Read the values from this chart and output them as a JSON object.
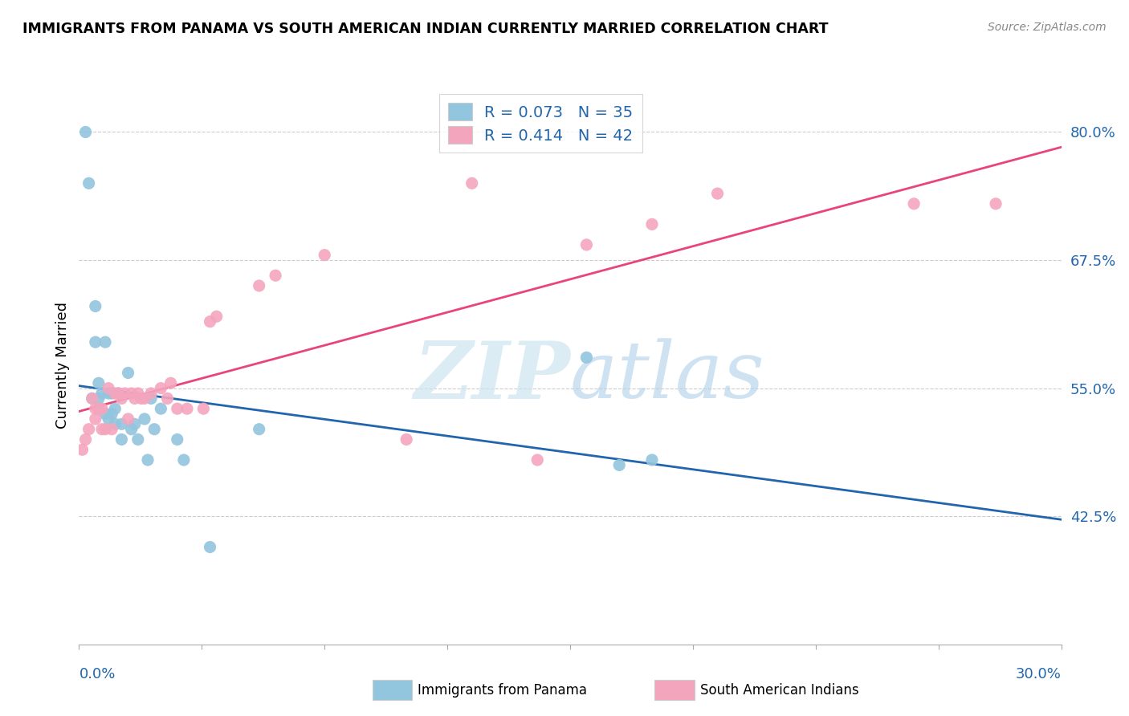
{
  "title": "IMMIGRANTS FROM PANAMA VS SOUTH AMERICAN INDIAN CURRENTLY MARRIED CORRELATION CHART",
  "source": "Source: ZipAtlas.com",
  "ylabel": "Currently Married",
  "ylabel_ticks": [
    "42.5%",
    "55.0%",
    "67.5%",
    "80.0%"
  ],
  "ylabel_tick_vals": [
    0.425,
    0.55,
    0.675,
    0.8
  ],
  "xmin": 0.0,
  "xmax": 0.3,
  "ymin": 0.3,
  "ymax": 0.845,
  "legend1_R": "0.073",
  "legend1_N": "35",
  "legend2_R": "0.414",
  "legend2_N": "42",
  "legend1_label": "Immigrants from Panama",
  "legend2_label": "South American Indians",
  "blue_color": "#92c5de",
  "pink_color": "#f4a5be",
  "blue_line_color": "#2166ac",
  "pink_line_color": "#e8457a",
  "watermark_color": "#cce4f0",
  "blue_x": [
    0.002,
    0.003,
    0.004,
    0.005,
    0.005,
    0.006,
    0.006,
    0.007,
    0.008,
    0.008,
    0.009,
    0.009,
    0.01,
    0.01,
    0.011,
    0.011,
    0.012,
    0.013,
    0.013,
    0.015,
    0.016,
    0.017,
    0.018,
    0.02,
    0.021,
    0.022,
    0.023,
    0.025,
    0.03,
    0.032,
    0.04,
    0.055,
    0.155,
    0.165,
    0.175
  ],
  "blue_y": [
    0.8,
    0.75,
    0.54,
    0.595,
    0.63,
    0.54,
    0.555,
    0.545,
    0.595,
    0.525,
    0.545,
    0.52,
    0.545,
    0.525,
    0.53,
    0.515,
    0.545,
    0.515,
    0.5,
    0.565,
    0.51,
    0.515,
    0.5,
    0.52,
    0.48,
    0.54,
    0.51,
    0.53,
    0.5,
    0.48,
    0.395,
    0.51,
    0.58,
    0.475,
    0.48
  ],
  "pink_x": [
    0.001,
    0.002,
    0.003,
    0.004,
    0.005,
    0.005,
    0.006,
    0.007,
    0.007,
    0.008,
    0.009,
    0.01,
    0.011,
    0.012,
    0.013,
    0.014,
    0.015,
    0.016,
    0.017,
    0.018,
    0.019,
    0.02,
    0.022,
    0.025,
    0.027,
    0.028,
    0.03,
    0.033,
    0.038,
    0.04,
    0.042,
    0.055,
    0.06,
    0.075,
    0.1,
    0.12,
    0.14,
    0.155,
    0.175,
    0.195,
    0.255,
    0.28
  ],
  "pink_y": [
    0.49,
    0.5,
    0.51,
    0.54,
    0.52,
    0.53,
    0.53,
    0.53,
    0.51,
    0.51,
    0.55,
    0.51,
    0.545,
    0.545,
    0.54,
    0.545,
    0.52,
    0.545,
    0.54,
    0.545,
    0.54,
    0.54,
    0.545,
    0.55,
    0.54,
    0.555,
    0.53,
    0.53,
    0.53,
    0.615,
    0.62,
    0.65,
    0.66,
    0.68,
    0.5,
    0.75,
    0.48,
    0.69,
    0.71,
    0.74,
    0.73,
    0.73
  ]
}
